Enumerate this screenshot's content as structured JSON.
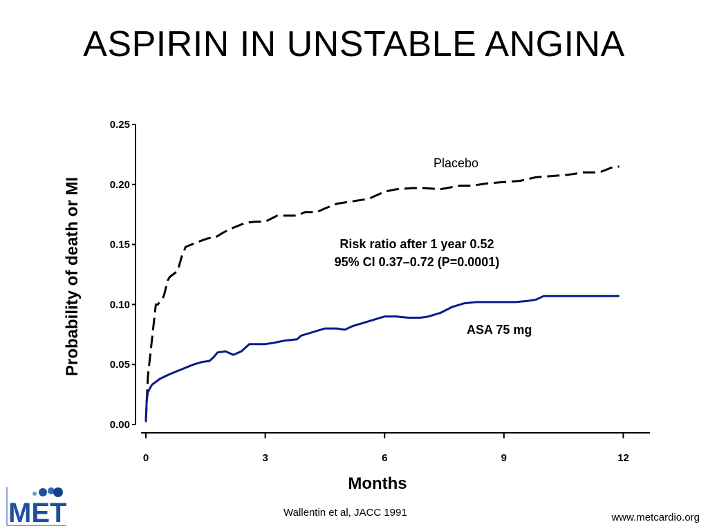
{
  "slide": {
    "title": "ASPIRIN IN UNSTABLE ANGINA",
    "citation": "Wallentin et al, JACC 1991",
    "website": "www.metcardio.org",
    "logo_text": "MET"
  },
  "chart_data": {
    "type": "line",
    "xlabel": "Months",
    "ylabel": "Probability of death or MI",
    "xlim": [
      0,
      12.6
    ],
    "ylim": [
      0,
      0.25
    ],
    "x_ticks": [
      0,
      3,
      6,
      9,
      12
    ],
    "x_tick_labels": [
      "0",
      "3",
      "6",
      "9",
      "12"
    ],
    "y_ticks": [
      0,
      0.05,
      0.1,
      0.15,
      0.2,
      0.25
    ],
    "y_tick_labels": [
      "0.00",
      "0.05",
      "0.10",
      "0.15",
      "0.20",
      "0.25"
    ],
    "grid": false,
    "annotations": {
      "risk_line1": "Risk ratio after 1 year 0.52",
      "risk_line2": "95% CI 0.37–0.72 (P=0.0001)"
    },
    "series": [
      {
        "name": "Placebo",
        "style": "dashed",
        "color": "#000000",
        "x": [
          0,
          0.05,
          0.15,
          0.25,
          0.3,
          0.45,
          0.55,
          0.6,
          0.8,
          0.9,
          1.0,
          1.3,
          1.55,
          1.75,
          1.95,
          2.2,
          2.5,
          2.75,
          3.0,
          3.3,
          3.5,
          3.8,
          4.0,
          4.3,
          4.5,
          4.8,
          5.2,
          5.6,
          6.0,
          6.3,
          6.7,
          7.0,
          7.4,
          7.9,
          8.2,
          8.6,
          9.0,
          9.4,
          9.8,
          10.2,
          10.6,
          11.0,
          11.4,
          11.7,
          11.9
        ],
        "values": [
          0.004,
          0.04,
          0.07,
          0.1,
          0.1,
          0.107,
          0.12,
          0.123,
          0.128,
          0.14,
          0.148,
          0.152,
          0.155,
          0.156,
          0.16,
          0.164,
          0.168,
          0.169,
          0.169,
          0.174,
          0.174,
          0.174,
          0.177,
          0.177,
          0.18,
          0.184,
          0.186,
          0.188,
          0.194,
          0.196,
          0.197,
          0.197,
          0.196,
          0.199,
          0.199,
          0.201,
          0.202,
          0.203,
          0.206,
          0.207,
          0.208,
          0.21,
          0.21,
          0.214,
          0.215
        ]
      },
      {
        "name": "ASA 75 mg",
        "style": "solid",
        "color": "#0a1a8c",
        "x": [
          0,
          0.02,
          0.05,
          0.15,
          0.35,
          0.6,
          0.9,
          1.2,
          1.4,
          1.6,
          1.7,
          1.8,
          2.0,
          2.2,
          2.4,
          2.6,
          2.8,
          3.0,
          3.2,
          3.5,
          3.8,
          3.9,
          4.2,
          4.5,
          4.8,
          5.0,
          5.2,
          5.5,
          5.8,
          6.0,
          6.3,
          6.6,
          6.9,
          7.1,
          7.4,
          7.7,
          8.0,
          8.3,
          8.7,
          9.0,
          9.3,
          9.6,
          9.8,
          10.0,
          10.4,
          11.0,
          11.5,
          11.9
        ],
        "values": [
          0.002,
          0.02,
          0.027,
          0.033,
          0.038,
          0.042,
          0.046,
          0.05,
          0.052,
          0.053,
          0.056,
          0.06,
          0.061,
          0.058,
          0.061,
          0.067,
          0.067,
          0.067,
          0.068,
          0.07,
          0.071,
          0.074,
          0.077,
          0.08,
          0.08,
          0.079,
          0.082,
          0.085,
          0.088,
          0.09,
          0.09,
          0.089,
          0.089,
          0.09,
          0.093,
          0.098,
          0.101,
          0.102,
          0.102,
          0.102,
          0.102,
          0.103,
          0.104,
          0.107,
          0.107,
          0.107,
          0.107,
          0.107
        ]
      }
    ],
    "series_labels": [
      "Placebo",
      "ASA 75 mg"
    ]
  }
}
